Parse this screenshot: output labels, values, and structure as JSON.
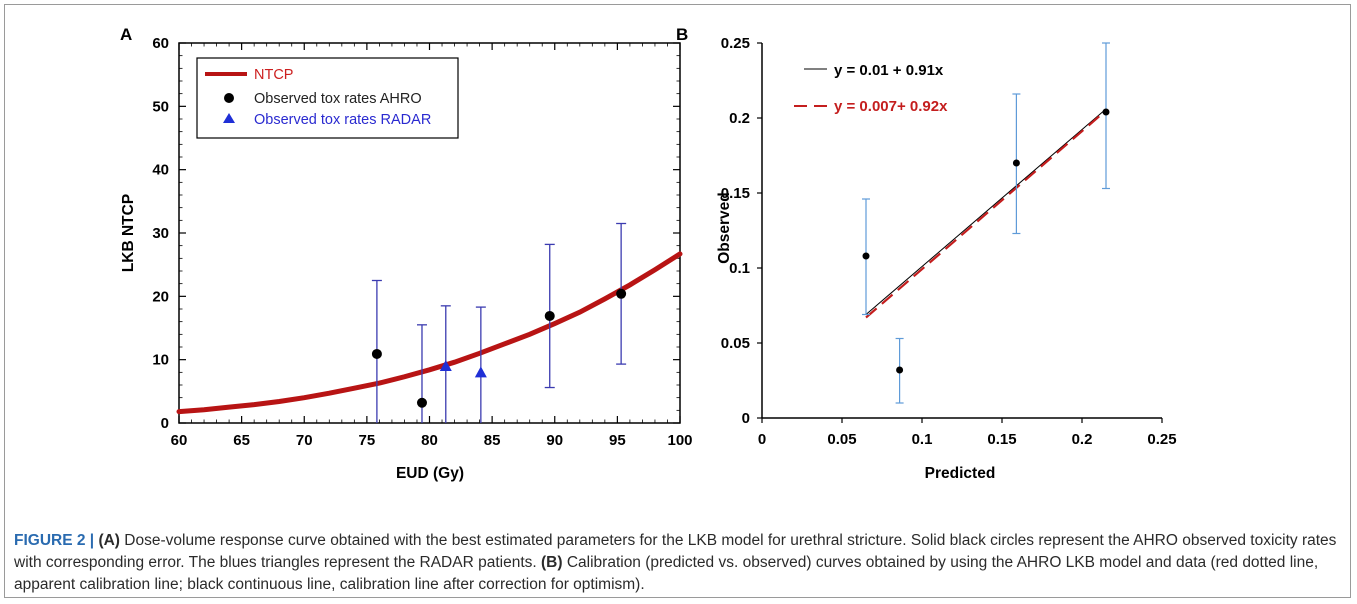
{
  "chart_data": [
    {
      "panel": "A",
      "type": "line",
      "xlabel": "EUD (Gy)",
      "ylabel": "LKB NTCP",
      "xlim": [
        60,
        100
      ],
      "ylim": [
        0,
        60
      ],
      "xticks": [
        "60",
        "65",
        "70",
        "75",
        "80",
        "85",
        "90",
        "95",
        "100"
      ],
      "yticks": [
        "0",
        "10",
        "20",
        "30",
        "40",
        "50",
        "60"
      ],
      "grid": false,
      "legend_position": "top-left",
      "legend": [
        "NTCP",
        "Observed tox rates AHRO",
        "Observed tox rates RADAR"
      ],
      "series": [
        {
          "name": "NTCP",
          "kind": "curve",
          "x": [
            60,
            62,
            64,
            66,
            68,
            70,
            72,
            74,
            76,
            78,
            80,
            82,
            84,
            86,
            88,
            90,
            92,
            94,
            96,
            98,
            100
          ],
          "y": [
            1.8,
            2.1,
            2.5,
            2.9,
            3.4,
            4.0,
            4.7,
            5.5,
            6.3,
            7.3,
            8.4,
            9.6,
            11.0,
            12.5,
            14.0,
            15.7,
            17.5,
            19.6,
            21.8,
            24.2,
            26.7
          ]
        },
        {
          "name": "Observed tox rates AHRO",
          "kind": "points",
          "x": [
            75.8,
            79.4,
            89.6,
            95.3
          ],
          "y": [
            10.9,
            3.2,
            16.9,
            20.4
          ],
          "err_low": [
            0,
            0,
            5.6,
            9.3
          ],
          "err_high": [
            22.5,
            15.5,
            28.2,
            31.5
          ]
        },
        {
          "name": "Observed tox rates RADAR",
          "kind": "points",
          "x": [
            81.3,
            84.1
          ],
          "y": [
            9.0,
            8.0
          ],
          "err_low": [
            0,
            0
          ],
          "err_high": [
            18.5,
            18.3
          ]
        }
      ]
    },
    {
      "panel": "B",
      "type": "line",
      "xlabel": "Predicted",
      "ylabel": "Observed",
      "xlim": [
        0,
        0.25
      ],
      "ylim": [
        0,
        0.25
      ],
      "xticks": [
        "0",
        "0.05",
        "0.1",
        "0.15",
        "0.2",
        "0.25"
      ],
      "yticks": [
        "0",
        "0.05",
        "0.1",
        "0.15",
        "0.2",
        "0.25"
      ],
      "grid": false,
      "annotations": [
        "y = 0.01 + 0.91x",
        "y = 0.007+ 0.92x"
      ],
      "series": [
        {
          "kind": "calibration-corrected",
          "x": [
            0.065,
            0.215
          ],
          "y": [
            0.069,
            0.206
          ]
        },
        {
          "kind": "calibration-apparent",
          "x": [
            0.065,
            0.215
          ],
          "y": [
            0.067,
            0.205
          ]
        },
        {
          "kind": "observed-points",
          "x": [
            0.065,
            0.086,
            0.159,
            0.215
          ],
          "y": [
            0.108,
            0.032,
            0.17,
            0.204
          ],
          "err_low": [
            0.069,
            0.01,
            0.123,
            0.153
          ],
          "err_high": [
            0.146,
            0.053,
            0.216,
            0.25
          ]
        }
      ]
    }
  ],
  "caption": {
    "label": "FIGURE 2 |",
    "a": "(A)",
    "text_a": " Dose-volume response curve obtained with the best estimated parameters for the LKB model for urethral stricture. Solid black circles represent the AHRO observed toxicity rates with corresponding error. The blues triangles represent the RADAR patients. ",
    "b": "(B)",
    "text_b": " Calibration (predicted vs. observed) curves obtained by using the AHRO LKB model and data (red dotted line, apparent calibration line; black continuous line, calibration line after correction for optimism)."
  },
  "colors": {
    "curve_red": "#b81414",
    "errorbar_blue": "#3b3bb0",
    "triangle_blue": "#1f2fd6",
    "legend_red": "#cc1f1f",
    "legend_blue": "#2a2ad0",
    "errorbar_lightblue": "#5f9bd8",
    "caption_blue": "#2a6bb0"
  }
}
